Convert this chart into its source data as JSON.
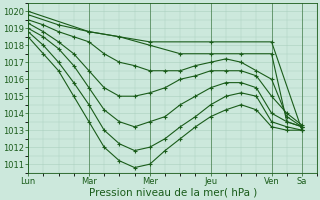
{
  "background_color": "#cce8dc",
  "plot_bg_color": "#cce8dc",
  "line_color": "#1a5c1a",
  "marker": "+",
  "marker_size": 2.5,
  "marker_lw": 0.8,
  "line_width": 0.8,
  "ylim": [
    1010.5,
    1020.5
  ],
  "yticks": [
    1011,
    1012,
    1013,
    1014,
    1015,
    1016,
    1017,
    1018,
    1019,
    1020
  ],
  "xlabel": "Pression niveau de la mer( hPa )",
  "xlabel_fontsize": 7.5,
  "tick_fontsize": 6,
  "grid_color": "#aacfbf",
  "xlim": [
    0,
    114
  ],
  "day_labels": [
    "Lun",
    "Mar",
    "Mer",
    "Jeu",
    "Ven",
    "Sa"
  ],
  "day_positions": [
    0,
    24,
    48,
    72,
    96,
    108
  ],
  "series": [
    {
      "x": [
        0,
        24,
        48,
        72,
        96,
        108
      ],
      "y": [
        1020.0,
        1018.8,
        1018.2,
        1018.2,
        1018.2,
        1013.0
      ]
    },
    {
      "x": [
        0,
        12,
        24,
        36,
        48,
        60,
        72,
        84,
        96,
        102,
        108
      ],
      "y": [
        1019.8,
        1019.2,
        1018.8,
        1018.5,
        1018.0,
        1017.5,
        1017.5,
        1017.5,
        1017.5,
        1013.5,
        1013.2
      ]
    },
    {
      "x": [
        0,
        6,
        12,
        18,
        24,
        30,
        36,
        42,
        48,
        54,
        60,
        66,
        72,
        78,
        84,
        90,
        96,
        102,
        108
      ],
      "y": [
        1019.5,
        1019.2,
        1018.8,
        1018.5,
        1018.2,
        1017.5,
        1017.0,
        1016.8,
        1016.5,
        1016.5,
        1016.5,
        1016.8,
        1017.0,
        1017.2,
        1017.0,
        1016.5,
        1016.0,
        1013.8,
        1013.2
      ]
    },
    {
      "x": [
        0,
        6,
        12,
        18,
        24,
        30,
        36,
        42,
        48,
        54,
        60,
        66,
        72,
        78,
        84,
        90,
        96,
        102,
        108
      ],
      "y": [
        1019.3,
        1018.8,
        1018.2,
        1017.5,
        1016.5,
        1015.5,
        1015.0,
        1015.0,
        1015.2,
        1015.5,
        1016.0,
        1016.2,
        1016.5,
        1016.5,
        1016.5,
        1016.2,
        1015.0,
        1014.0,
        1013.3
      ]
    },
    {
      "x": [
        0,
        6,
        12,
        18,
        24,
        30,
        36,
        42,
        48,
        54,
        60,
        66,
        72,
        78,
        84,
        90,
        96,
        102,
        108
      ],
      "y": [
        1019.0,
        1018.5,
        1017.8,
        1016.8,
        1015.5,
        1014.2,
        1013.5,
        1013.2,
        1013.5,
        1013.8,
        1014.5,
        1015.0,
        1015.5,
        1015.8,
        1015.8,
        1015.5,
        1014.0,
        1013.5,
        1013.2
      ]
    },
    {
      "x": [
        0,
        6,
        12,
        18,
        24,
        30,
        36,
        42,
        48,
        54,
        60,
        66,
        72,
        78,
        84,
        90,
        96,
        102,
        108
      ],
      "y": [
        1018.8,
        1018.0,
        1017.0,
        1015.8,
        1014.5,
        1013.0,
        1012.2,
        1011.8,
        1012.0,
        1012.5,
        1013.2,
        1013.8,
        1014.5,
        1015.0,
        1015.2,
        1015.0,
        1013.5,
        1013.2,
        1013.0
      ]
    },
    {
      "x": [
        0,
        6,
        12,
        18,
        24,
        30,
        36,
        42,
        48,
        54,
        60,
        66,
        72,
        78,
        84,
        90,
        96,
        102,
        108
      ],
      "y": [
        1018.5,
        1017.5,
        1016.5,
        1015.0,
        1013.5,
        1012.0,
        1011.2,
        1010.8,
        1011.0,
        1011.8,
        1012.5,
        1013.2,
        1013.8,
        1014.2,
        1014.5,
        1014.2,
        1013.2,
        1013.0,
        1013.0
      ]
    }
  ]
}
